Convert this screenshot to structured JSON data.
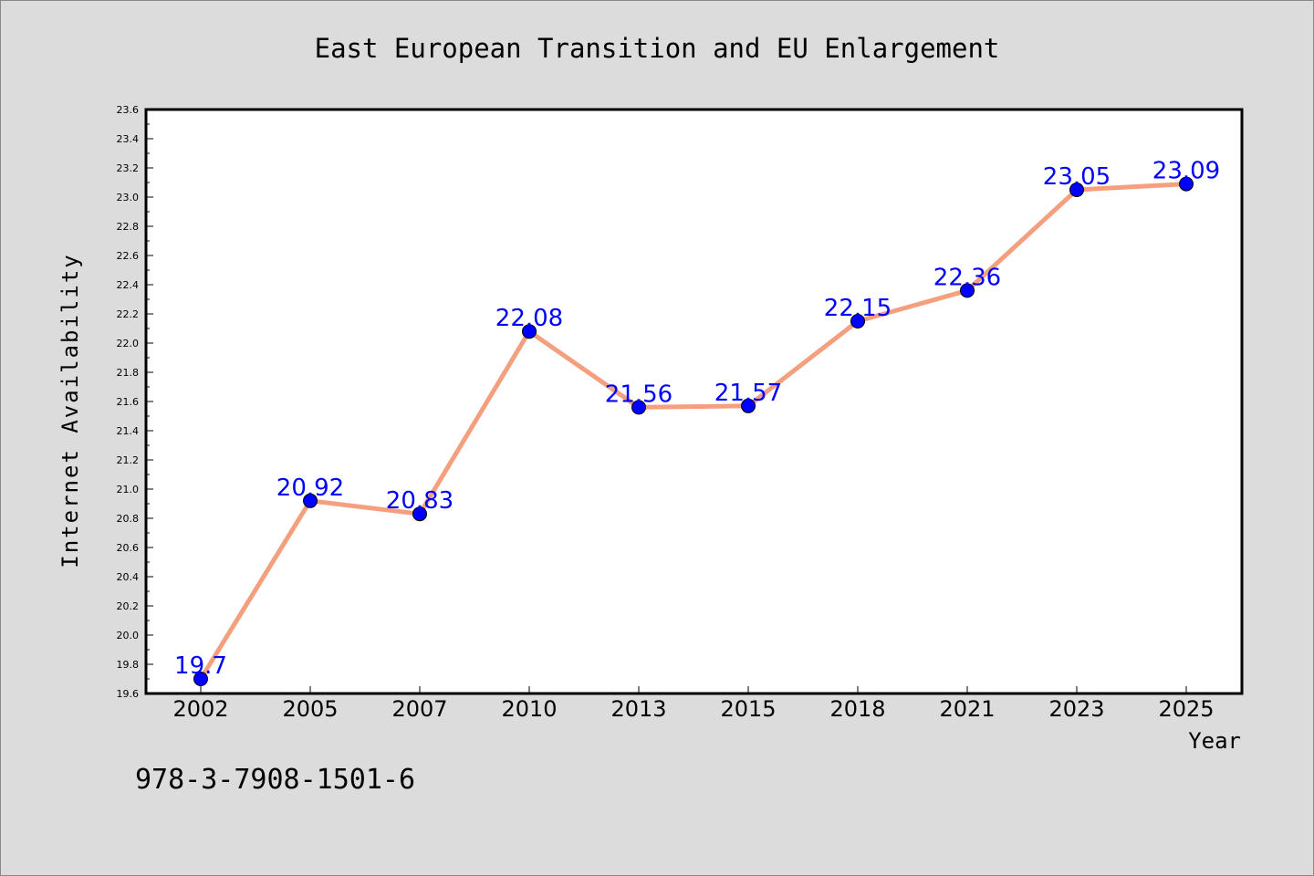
{
  "chart_data": {
    "type": "line",
    "title": "East European Transition and EU Enlargement",
    "xlabel": "Year",
    "ylabel": "Internet Availability",
    "categories": [
      "2002",
      "2005",
      "2007",
      "2010",
      "2013",
      "2015",
      "2018",
      "2021",
      "2023",
      "2025"
    ],
    "values": [
      19.7,
      20.92,
      20.83,
      22.08,
      21.56,
      21.57,
      22.15,
      22.36,
      23.05,
      23.09
    ],
    "data_labels": [
      "19.7",
      "20.92",
      "20.83",
      "22.08",
      "21.56",
      "21.57",
      "22.15",
      "22.36",
      "23.05",
      "23.09"
    ],
    "ylim": [
      19.6,
      23.6
    ],
    "yticks": [
      "19.6",
      "19.8",
      "20.0",
      "20.2",
      "20.4",
      "20.6",
      "20.8",
      "21.0",
      "21.2",
      "21.4",
      "21.6",
      "21.8",
      "22.0",
      "22.2",
      "22.4",
      "22.6",
      "22.8",
      "23.0",
      "23.2",
      "23.4",
      "23.6"
    ],
    "grid": false,
    "colors": {
      "line": "#f4a07e",
      "marker": "#0000ff",
      "label": "#0000ff",
      "background": "#dcdcdc",
      "plot_background": "#ffffff"
    }
  },
  "footer": {
    "isbn": "978-3-7908-1501-6"
  }
}
